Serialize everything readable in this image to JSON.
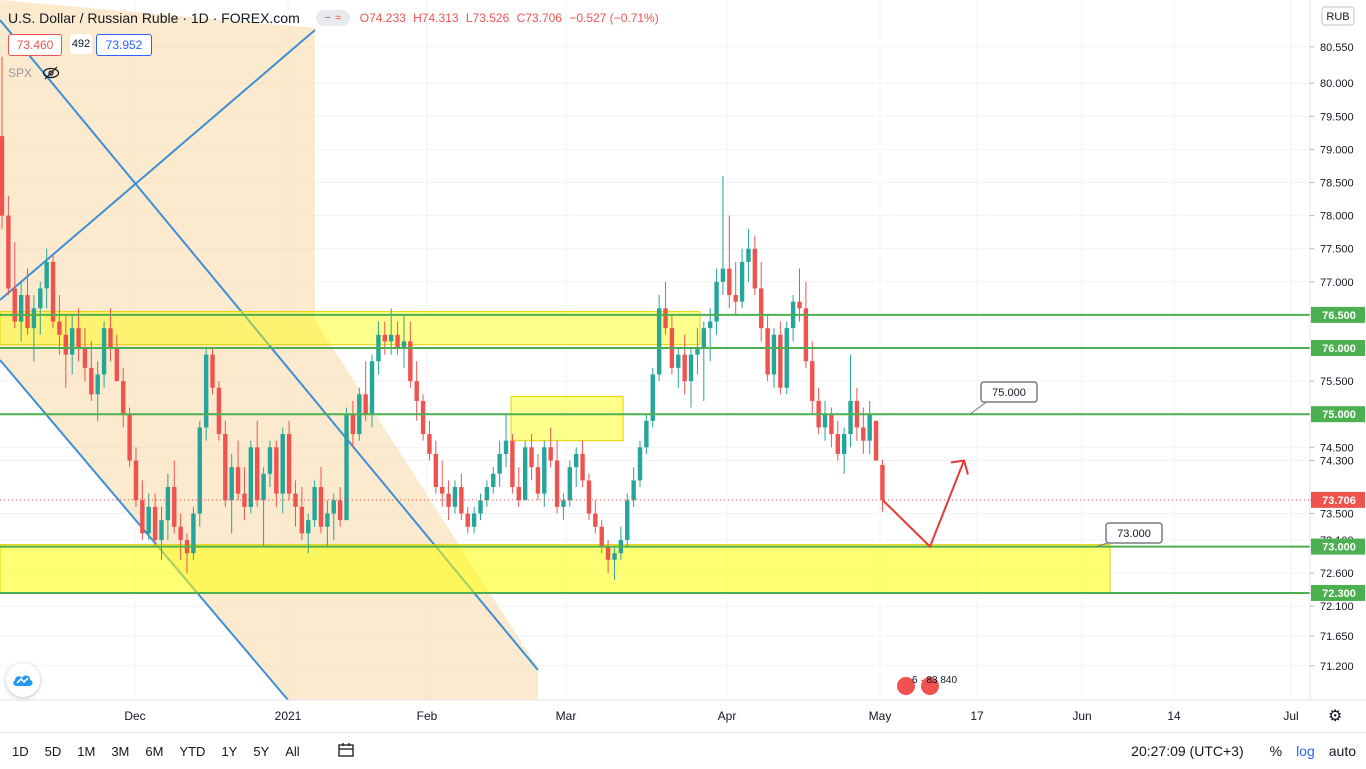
{
  "header": {
    "symbol": "U.S. Dollar / Russian Ruble · 1D · FOREX.com",
    "open": "O74.233",
    "high": "H74.313",
    "low": "L73.526",
    "close": "C73.706",
    "change": "−0.527 (−0.71%)"
  },
  "trade": {
    "sell": "73.460",
    "spread": "492",
    "buy": "73.952"
  },
  "compare": {
    "symbol": "SPX"
  },
  "currency_label": "RUB",
  "bottom_toolbar": {
    "timeframes": [
      "1D",
      "5D",
      "1M",
      "3M",
      "6M",
      "YTD",
      "1Y",
      "5Y",
      "All"
    ],
    "time": "20:27:09 (UTC+3)",
    "percent": "%",
    "log": "log",
    "auto": "auto"
  },
  "colors": {
    "up": "#26a69a",
    "down": "#ef5350",
    "level_line": "#4caf50",
    "zone": "#ffff00",
    "channel": "#f8d9a4",
    "trend": "#3d8fd6"
  },
  "chart_data": {
    "type": "candlestick",
    "ylim": [
      71.0,
      81.0
    ],
    "y_ticks": [
      "80.550",
      "80.000",
      "79.500",
      "79.000",
      "78.500",
      "78.000",
      "77.500",
      "77.000",
      "76.500",
      "76.000",
      "75.500",
      "75.000",
      "74.500",
      "74.300",
      "73.706",
      "73.500",
      "73.100",
      "73.000",
      "72.600",
      "72.300",
      "72.100",
      "71.650",
      "71.200"
    ],
    "x_labels": [
      "Dec",
      "2021",
      "Feb",
      "Mar",
      "Apr",
      "May",
      "17",
      "Jun",
      "14",
      "Jul"
    ],
    "last_price": 73.706,
    "levels": [
      {
        "value": 76.5,
        "label": "76.500"
      },
      {
        "value": 76.0,
        "label": "76.000"
      },
      {
        "value": 75.0,
        "label": "75.000"
      },
      {
        "value": 73.0,
        "label": "73.000"
      },
      {
        "value": 72.3,
        "label": "72.300"
      }
    ],
    "annotations": [
      {
        "text": "75.000",
        "target": 75.0
      },
      {
        "text": "73.000",
        "target": 73.0
      }
    ],
    "projection": [
      73.706,
      73.0,
      74.3
    ],
    "event_labels": "6 · 83 840",
    "candles": [
      [
        79.2,
        80.4,
        77.8,
        78.0
      ],
      [
        78.0,
        78.3,
        76.8,
        76.9
      ],
      [
        76.9,
        77.6,
        76.3,
        76.4
      ],
      [
        76.4,
        77.0,
        76.1,
        76.8
      ],
      [
        76.8,
        77.2,
        76.2,
        76.3
      ],
      [
        76.3,
        76.8,
        75.8,
        76.6
      ],
      [
        76.6,
        77.0,
        76.2,
        76.9
      ],
      [
        76.9,
        77.5,
        76.6,
        77.3
      ],
      [
        77.3,
        77.4,
        76.3,
        76.4
      ],
      [
        76.4,
        76.8,
        75.9,
        76.2
      ],
      [
        76.2,
        76.5,
        75.4,
        75.9
      ],
      [
        75.9,
        76.5,
        75.6,
        76.3
      ],
      [
        76.3,
        76.6,
        75.8,
        76.0
      ],
      [
        76.0,
        76.3,
        75.5,
        75.7
      ],
      [
        75.7,
        76.1,
        75.2,
        75.3
      ],
      [
        75.3,
        75.8,
        74.9,
        75.6
      ],
      [
        75.6,
        76.4,
        75.4,
        76.3
      ],
      [
        76.3,
        76.6,
        75.8,
        76.0
      ],
      [
        76.0,
        76.2,
        75.5,
        75.5
      ],
      [
        75.5,
        75.7,
        74.8,
        75.0
      ],
      [
        75.0,
        75.1,
        74.2,
        74.3
      ],
      [
        74.3,
        74.5,
        73.6,
        73.7
      ],
      [
        73.7,
        74.0,
        73.1,
        73.2
      ],
      [
        73.2,
        73.8,
        73.1,
        73.6
      ],
      [
        73.6,
        73.8,
        73.0,
        73.1
      ],
      [
        73.1,
        73.6,
        72.8,
        73.4
      ],
      [
        73.4,
        74.1,
        73.1,
        73.9
      ],
      [
        73.9,
        74.3,
        73.2,
        73.3
      ],
      [
        73.3,
        73.5,
        72.8,
        73.1
      ],
      [
        73.1,
        73.2,
        72.6,
        72.9
      ],
      [
        72.9,
        73.6,
        72.8,
        73.5
      ],
      [
        73.5,
        74.9,
        73.3,
        74.8
      ],
      [
        74.8,
        76.0,
        74.6,
        75.9
      ],
      [
        75.9,
        76.0,
        75.3,
        75.4
      ],
      [
        75.4,
        75.5,
        74.6,
        74.7
      ],
      [
        74.7,
        74.9,
        73.6,
        73.7
      ],
      [
        73.7,
        74.4,
        73.2,
        74.2
      ],
      [
        74.2,
        74.6,
        73.7,
        73.8
      ],
      [
        73.8,
        74.2,
        73.4,
        73.6
      ],
      [
        73.6,
        74.6,
        73.5,
        74.5
      ],
      [
        74.5,
        74.9,
        73.6,
        73.7
      ],
      [
        73.7,
        74.2,
        73.0,
        74.1
      ],
      [
        74.1,
        74.6,
        73.9,
        74.5
      ],
      [
        74.5,
        74.6,
        73.6,
        73.8
      ],
      [
        73.8,
        74.8,
        73.5,
        74.7
      ],
      [
        74.7,
        74.9,
        73.7,
        73.8
      ],
      [
        73.8,
        74.0,
        73.3,
        73.6
      ],
      [
        73.6,
        73.9,
        73.1,
        73.2
      ],
      [
        73.2,
        73.5,
        72.9,
        73.4
      ],
      [
        73.4,
        74.0,
        73.3,
        73.9
      ],
      [
        73.9,
        74.2,
        73.2,
        73.3
      ],
      [
        73.3,
        73.7,
        73.0,
        73.5
      ],
      [
        73.5,
        73.8,
        73.1,
        73.7
      ],
      [
        73.7,
        73.9,
        73.3,
        73.4
      ],
      [
        73.4,
        75.1,
        73.4,
        75.0
      ],
      [
        75.0,
        75.2,
        74.5,
        74.7
      ],
      [
        74.7,
        75.4,
        74.6,
        75.3
      ],
      [
        75.3,
        75.8,
        74.9,
        75.0
      ],
      [
        75.0,
        75.9,
        74.8,
        75.8
      ],
      [
        75.8,
        76.4,
        75.6,
        76.2
      ],
      [
        76.2,
        76.4,
        75.9,
        76.1
      ],
      [
        76.1,
        76.6,
        75.9,
        76.2
      ],
      [
        76.2,
        76.4,
        75.9,
        76.0
      ],
      [
        76.0,
        76.5,
        75.7,
        76.1
      ],
      [
        76.1,
        76.4,
        75.4,
        75.5
      ],
      [
        75.5,
        75.8,
        74.9,
        75.2
      ],
      [
        75.2,
        75.3,
        74.6,
        74.7
      ],
      [
        74.7,
        74.9,
        74.3,
        74.4
      ],
      [
        74.4,
        74.6,
        73.8,
        73.9
      ],
      [
        73.9,
        74.3,
        73.6,
        73.8
      ],
      [
        73.8,
        74.0,
        73.4,
        73.6
      ],
      [
        73.6,
        74.0,
        73.5,
        73.9
      ],
      [
        73.9,
        74.1,
        73.4,
        73.5
      ],
      [
        73.5,
        73.6,
        73.2,
        73.3
      ],
      [
        73.3,
        73.6,
        73.2,
        73.5
      ],
      [
        73.5,
        73.8,
        73.4,
        73.7
      ],
      [
        73.7,
        74.0,
        73.6,
        73.9
      ],
      [
        73.9,
        74.2,
        73.8,
        74.1
      ],
      [
        74.1,
        74.6,
        73.9,
        74.4
      ],
      [
        74.4,
        75.0,
        74.2,
        74.6
      ],
      [
        74.6,
        74.7,
        73.8,
        73.9
      ],
      [
        73.9,
        74.2,
        73.6,
        73.7
      ],
      [
        73.7,
        74.6,
        73.7,
        74.5
      ],
      [
        74.5,
        74.7,
        74.0,
        74.2
      ],
      [
        74.2,
        74.4,
        73.7,
        73.8
      ],
      [
        73.8,
        74.6,
        73.6,
        74.5
      ],
      [
        74.5,
        74.8,
        74.2,
        74.3
      ],
      [
        74.3,
        74.6,
        73.5,
        73.6
      ],
      [
        73.6,
        73.8,
        73.4,
        73.7
      ],
      [
        73.7,
        74.3,
        73.6,
        74.2
      ],
      [
        74.2,
        74.5,
        73.9,
        74.4
      ],
      [
        74.4,
        74.6,
        73.9,
        74.0
      ],
      [
        74.0,
        74.1,
        73.4,
        73.5
      ],
      [
        73.5,
        73.7,
        73.2,
        73.3
      ],
      [
        73.3,
        73.4,
        72.9,
        73.0
      ],
      [
        73.0,
        73.1,
        72.6,
        72.8
      ],
      [
        72.8,
        73.0,
        72.5,
        72.9
      ],
      [
        72.9,
        73.3,
        72.8,
        73.1
      ],
      [
        73.1,
        73.8,
        73.0,
        73.7
      ],
      [
        73.7,
        74.2,
        73.6,
        74.0
      ],
      [
        74.0,
        74.6,
        73.9,
        74.5
      ],
      [
        74.5,
        75.0,
        74.4,
        74.9
      ],
      [
        74.9,
        75.7,
        74.8,
        75.6
      ],
      [
        75.6,
        76.8,
        75.5,
        76.6
      ],
      [
        76.6,
        77.0,
        76.2,
        76.3
      ],
      [
        76.3,
        76.5,
        75.6,
        75.7
      ],
      [
        75.7,
        76.0,
        75.4,
        75.9
      ],
      [
        75.9,
        76.2,
        75.3,
        75.5
      ],
      [
        75.5,
        76.0,
        75.1,
        75.9
      ],
      [
        75.9,
        76.3,
        75.6,
        76.0
      ],
      [
        76.0,
        76.4,
        75.2,
        76.3
      ],
      [
        76.3,
        76.6,
        75.8,
        76.4
      ],
      [
        76.4,
        77.2,
        76.2,
        77.0
      ],
      [
        77.0,
        78.6,
        76.8,
        77.2
      ],
      [
        77.2,
        78.0,
        76.6,
        76.8
      ],
      [
        76.8,
        77.3,
        76.5,
        76.7
      ],
      [
        76.7,
        77.5,
        76.6,
        77.3
      ],
      [
        77.3,
        77.8,
        77.0,
        77.5
      ],
      [
        77.5,
        77.7,
        76.8,
        76.9
      ],
      [
        76.9,
        77.3,
        76.1,
        76.3
      ],
      [
        76.3,
        76.5,
        75.5,
        75.6
      ],
      [
        75.6,
        76.3,
        75.4,
        76.2
      ],
      [
        76.2,
        76.4,
        75.3,
        75.4
      ],
      [
        75.4,
        76.4,
        75.3,
        76.3
      ],
      [
        76.3,
        76.8,
        76.1,
        76.7
      ],
      [
        76.7,
        77.2,
        76.4,
        76.6
      ],
      [
        76.6,
        77.0,
        75.7,
        75.8
      ],
      [
        75.8,
        76.1,
        75.0,
        75.2
      ],
      [
        75.2,
        75.4,
        74.7,
        74.8
      ],
      [
        74.8,
        75.2,
        74.6,
        75.0
      ],
      [
        75.0,
        75.1,
        74.5,
        74.7
      ],
      [
        74.7,
        74.9,
        74.3,
        74.4
      ],
      [
        74.4,
        74.8,
        74.1,
        74.7
      ],
      [
        74.7,
        75.9,
        74.5,
        75.2
      ],
      [
        75.2,
        75.4,
        74.6,
        74.8
      ],
      [
        74.8,
        75.1,
        74.4,
        74.6
      ],
      [
        74.6,
        75.2,
        74.4,
        75.0
      ],
      [
        74.9,
        74.9,
        74.3,
        74.3
      ],
      [
        74.233,
        74.313,
        73.526,
        73.706
      ]
    ]
  }
}
